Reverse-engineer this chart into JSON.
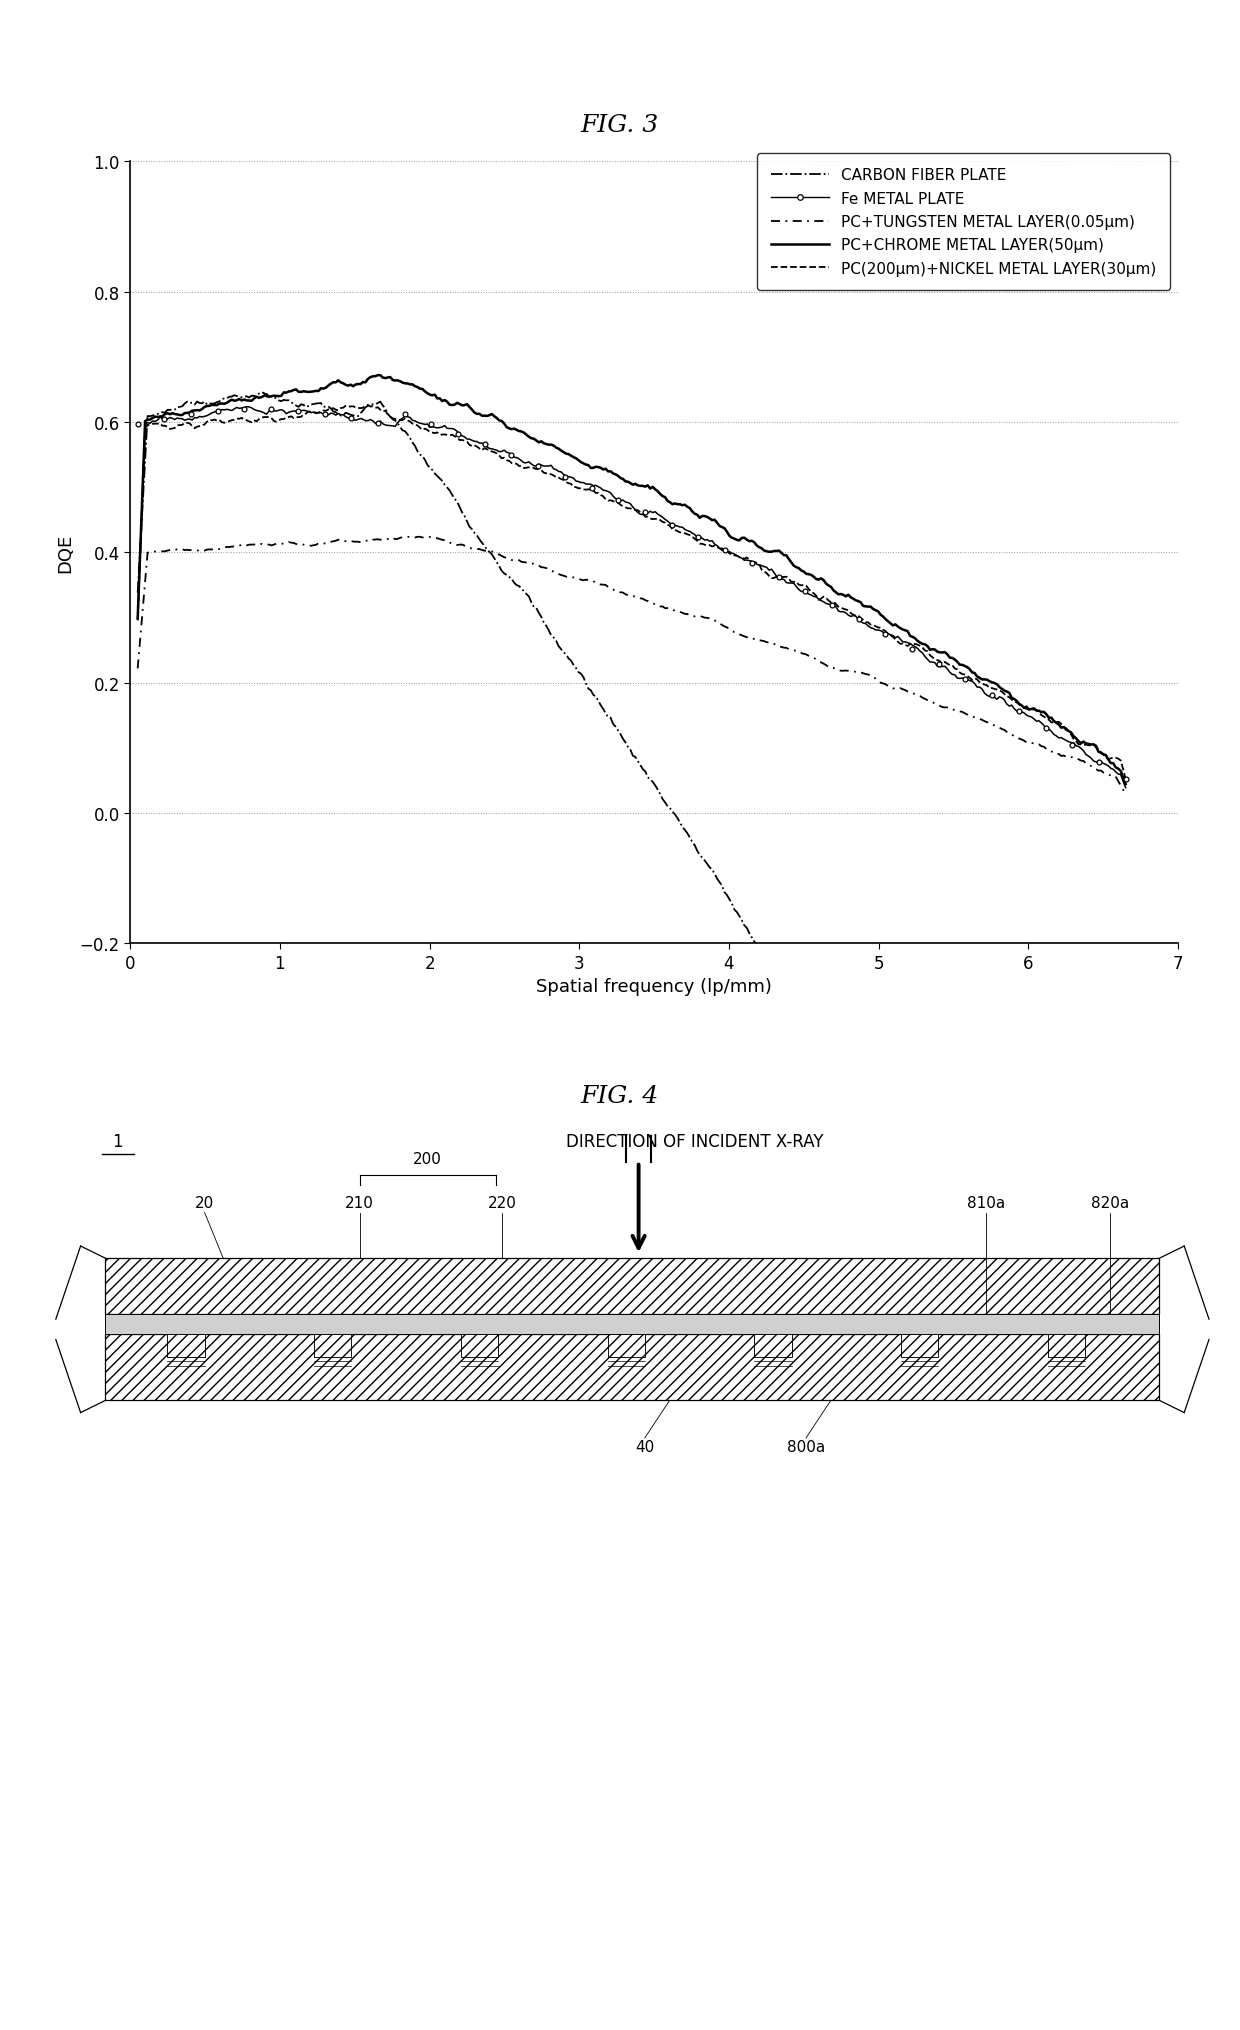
{
  "fig3_title": "FIG. 3",
  "fig4_title": "FIG. 4",
  "xlabel": "Spatial frequency (lp/mm)",
  "ylabel": "DQE",
  "xlim": [
    0,
    7
  ],
  "ylim": [
    -0.2,
    1.0
  ],
  "xticks": [
    0,
    1,
    2,
    3,
    4,
    5,
    6,
    7
  ],
  "yticks": [
    -0.2,
    0.0,
    0.2,
    0.4,
    0.6,
    0.8,
    1.0
  ],
  "legend_labels": [
    "CARBON FIBER PLATE",
    "Fe METAL PLATE",
    "PC+TUNGSTEN METAL LAYER(0.05μm)",
    "PC+CHROME METAL LAYER(50μm)",
    "PC(200μm)+NICKEL METAL LAYER(30μm)"
  ],
  "title_fontsize": 18,
  "label_fontsize": 13,
  "tick_fontsize": 12,
  "legend_fontsize": 11,
  "fig4_label_fontsize": 12,
  "fig4_small_fontsize": 11,
  "direction_text": "DIRECTION OF INCIDENT X-RAY",
  "label_1": "1",
  "label_200": "200",
  "label_20": "20",
  "label_210": "210",
  "label_220": "220",
  "label_810a": "810a",
  "label_820a": "820a",
  "label_40": "40",
  "label_800a": "800a"
}
